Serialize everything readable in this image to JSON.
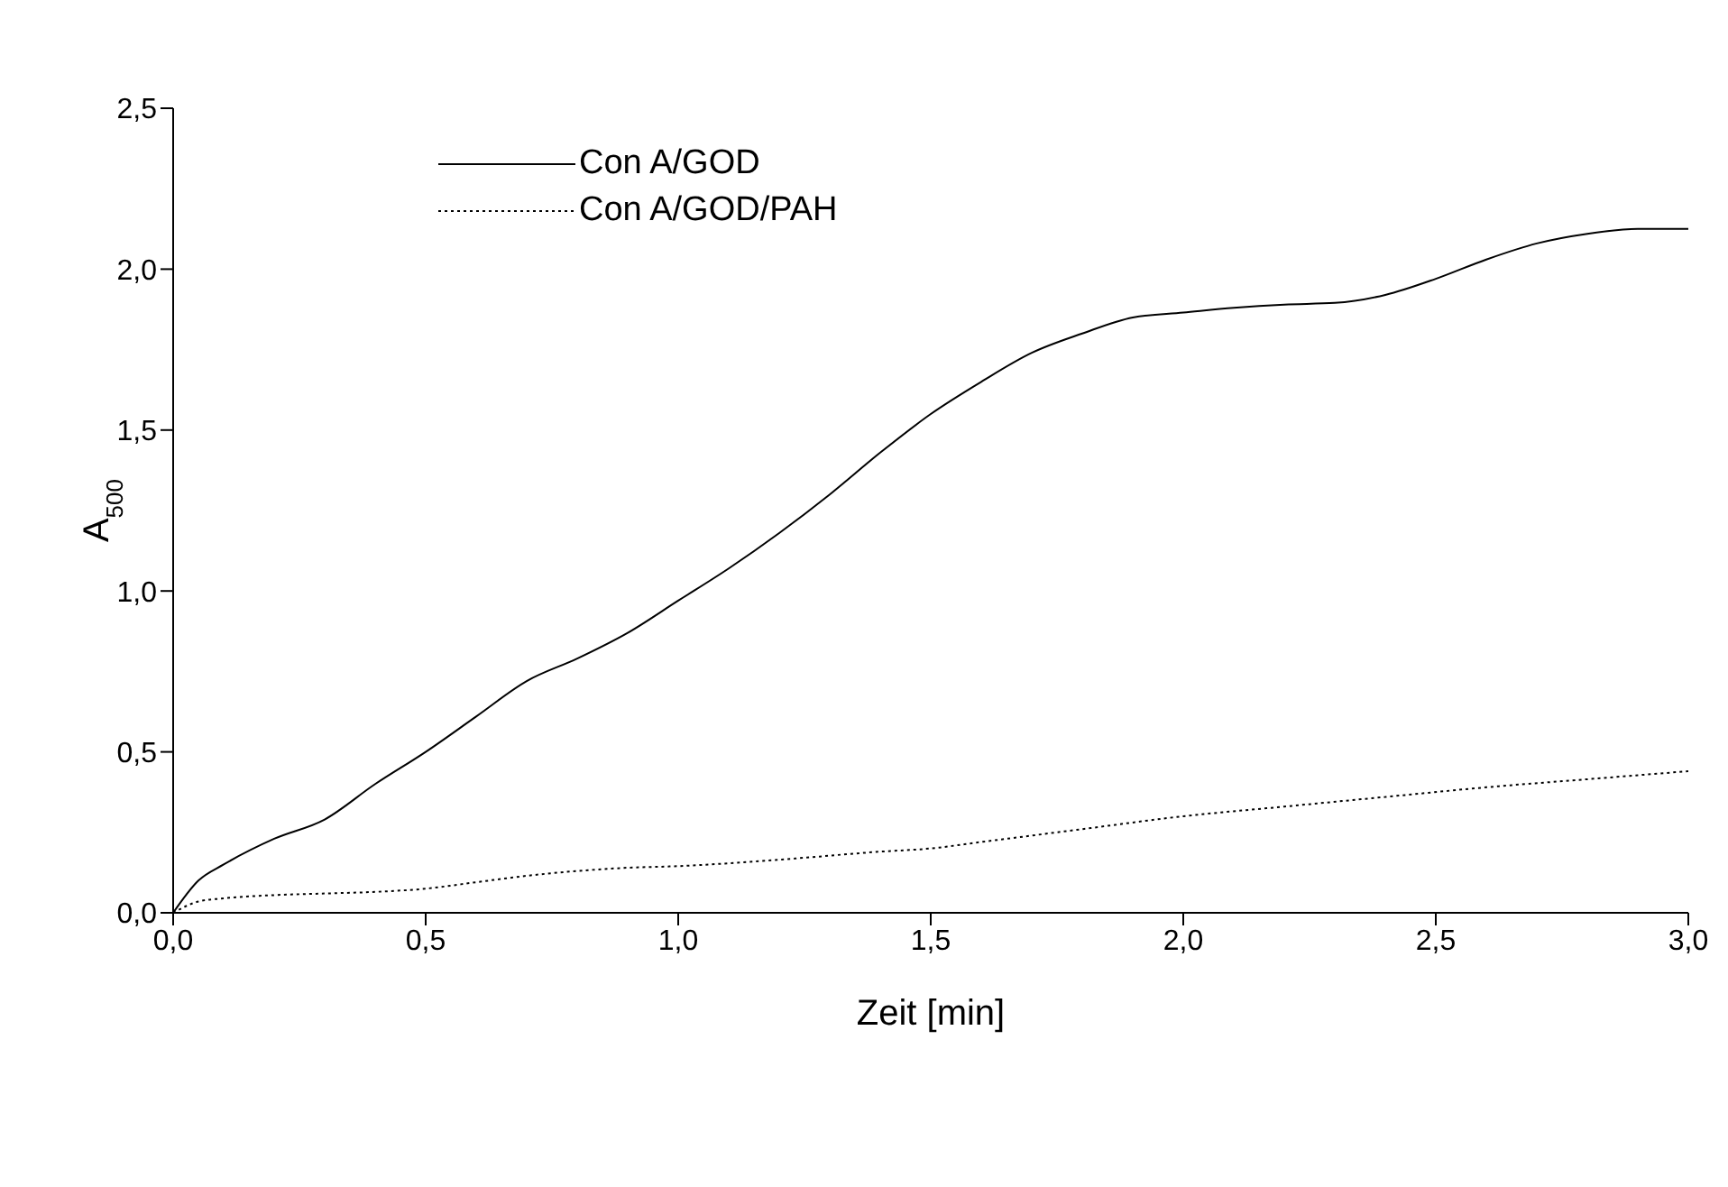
{
  "chart_data": {
    "type": "line",
    "xlabel": "Zeit [min]",
    "ylabel": "A$_{500}$",
    "xlim": [
      0,
      3
    ],
    "ylim": [
      0,
      2.5
    ],
    "xticks": [
      {
        "value": 0,
        "label": "0,0"
      },
      {
        "value": 0.5,
        "label": "0,5"
      },
      {
        "value": 1,
        "label": "1,0"
      },
      {
        "value": 1.5,
        "label": "1,5"
      },
      {
        "value": 2,
        "label": "2,0"
      },
      {
        "value": 2.5,
        "label": "2,5"
      },
      {
        "value": 3,
        "label": "3,0"
      }
    ],
    "yticks": [
      {
        "value": 0,
        "label": "0,0"
      },
      {
        "value": 0.5,
        "label": "0,5"
      },
      {
        "value": 1,
        "label": "1,0"
      },
      {
        "value": 1.5,
        "label": "1,5"
      },
      {
        "value": 2,
        "label": "2,0"
      },
      {
        "value": 2.5,
        "label": "2,5"
      }
    ],
    "grid": false,
    "legend": "top left",
    "marker": "none",
    "series": [
      {
        "name": "Con A/GOD",
        "color": "#000000",
        "line_style": "solid",
        "x": [
          0,
          0.05,
          0.1,
          0.2,
          0.3,
          0.4,
          0.5,
          0.6,
          0.7,
          0.8,
          0.9,
          1.0,
          1.1,
          1.2,
          1.3,
          1.4,
          1.5,
          1.6,
          1.7,
          1.8,
          1.9,
          2.0,
          2.1,
          2.2,
          2.3,
          2.4,
          2.5,
          2.6,
          2.7,
          2.8,
          2.9,
          3.0
        ],
        "values": [
          0,
          0.1,
          0.15,
          0.23,
          0.29,
          0.4,
          0.5,
          0.61,
          0.72,
          0.79,
          0.87,
          0.97,
          1.07,
          1.18,
          1.3,
          1.43,
          1.55,
          1.65,
          1.74,
          1.8,
          1.85,
          1.865,
          1.88,
          1.89,
          1.895,
          1.92,
          1.97,
          2.03,
          2.08,
          2.11,
          2.125,
          2.125
        ]
      },
      {
        "name": "Con A/GOD/PAH",
        "color": "#000000",
        "line_style": "dotted",
        "x": [
          0,
          0.05,
          0.1,
          0.2,
          0.3,
          0.4,
          0.5,
          0.6,
          0.7,
          0.8,
          0.9,
          1.0,
          1.2,
          1.4,
          1.5,
          1.6,
          1.8,
          2.0,
          2.2,
          2.4,
          2.6,
          2.8,
          3.0
        ],
        "values": [
          0,
          0.035,
          0.045,
          0.055,
          0.06,
          0.065,
          0.075,
          0.095,
          0.115,
          0.13,
          0.14,
          0.145,
          0.165,
          0.19,
          0.2,
          0.22,
          0.26,
          0.3,
          0.33,
          0.36,
          0.39,
          0.415,
          0.44
        ]
      }
    ]
  }
}
